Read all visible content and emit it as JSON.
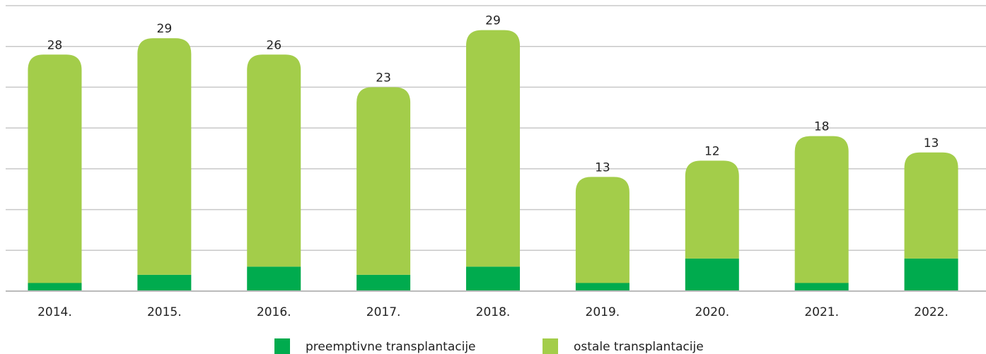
{
  "chart_data": {
    "type": "stacked-bar",
    "categories": [
      "2014.",
      "2015.",
      "2016.",
      "2017.",
      "2018.",
      "2019.",
      "2020.",
      "2021.",
      "2022."
    ],
    "series": [
      {
        "name": "preemptivne transplantacije",
        "color": "#00ab4e",
        "values": [
          1,
          2,
          3,
          2,
          3,
          1,
          4,
          1,
          4
        ]
      },
      {
        "name": "ostale transplantacije",
        "color": "#a3cd4a",
        "values": [
          28,
          29,
          26,
          23,
          29,
          13,
          12,
          18,
          13
        ]
      }
    ],
    "ylim": [
      0,
      35
    ],
    "yticks": [
      0,
      5,
      10,
      15,
      20,
      25,
      30,
      35
    ],
    "grid": true
  }
}
